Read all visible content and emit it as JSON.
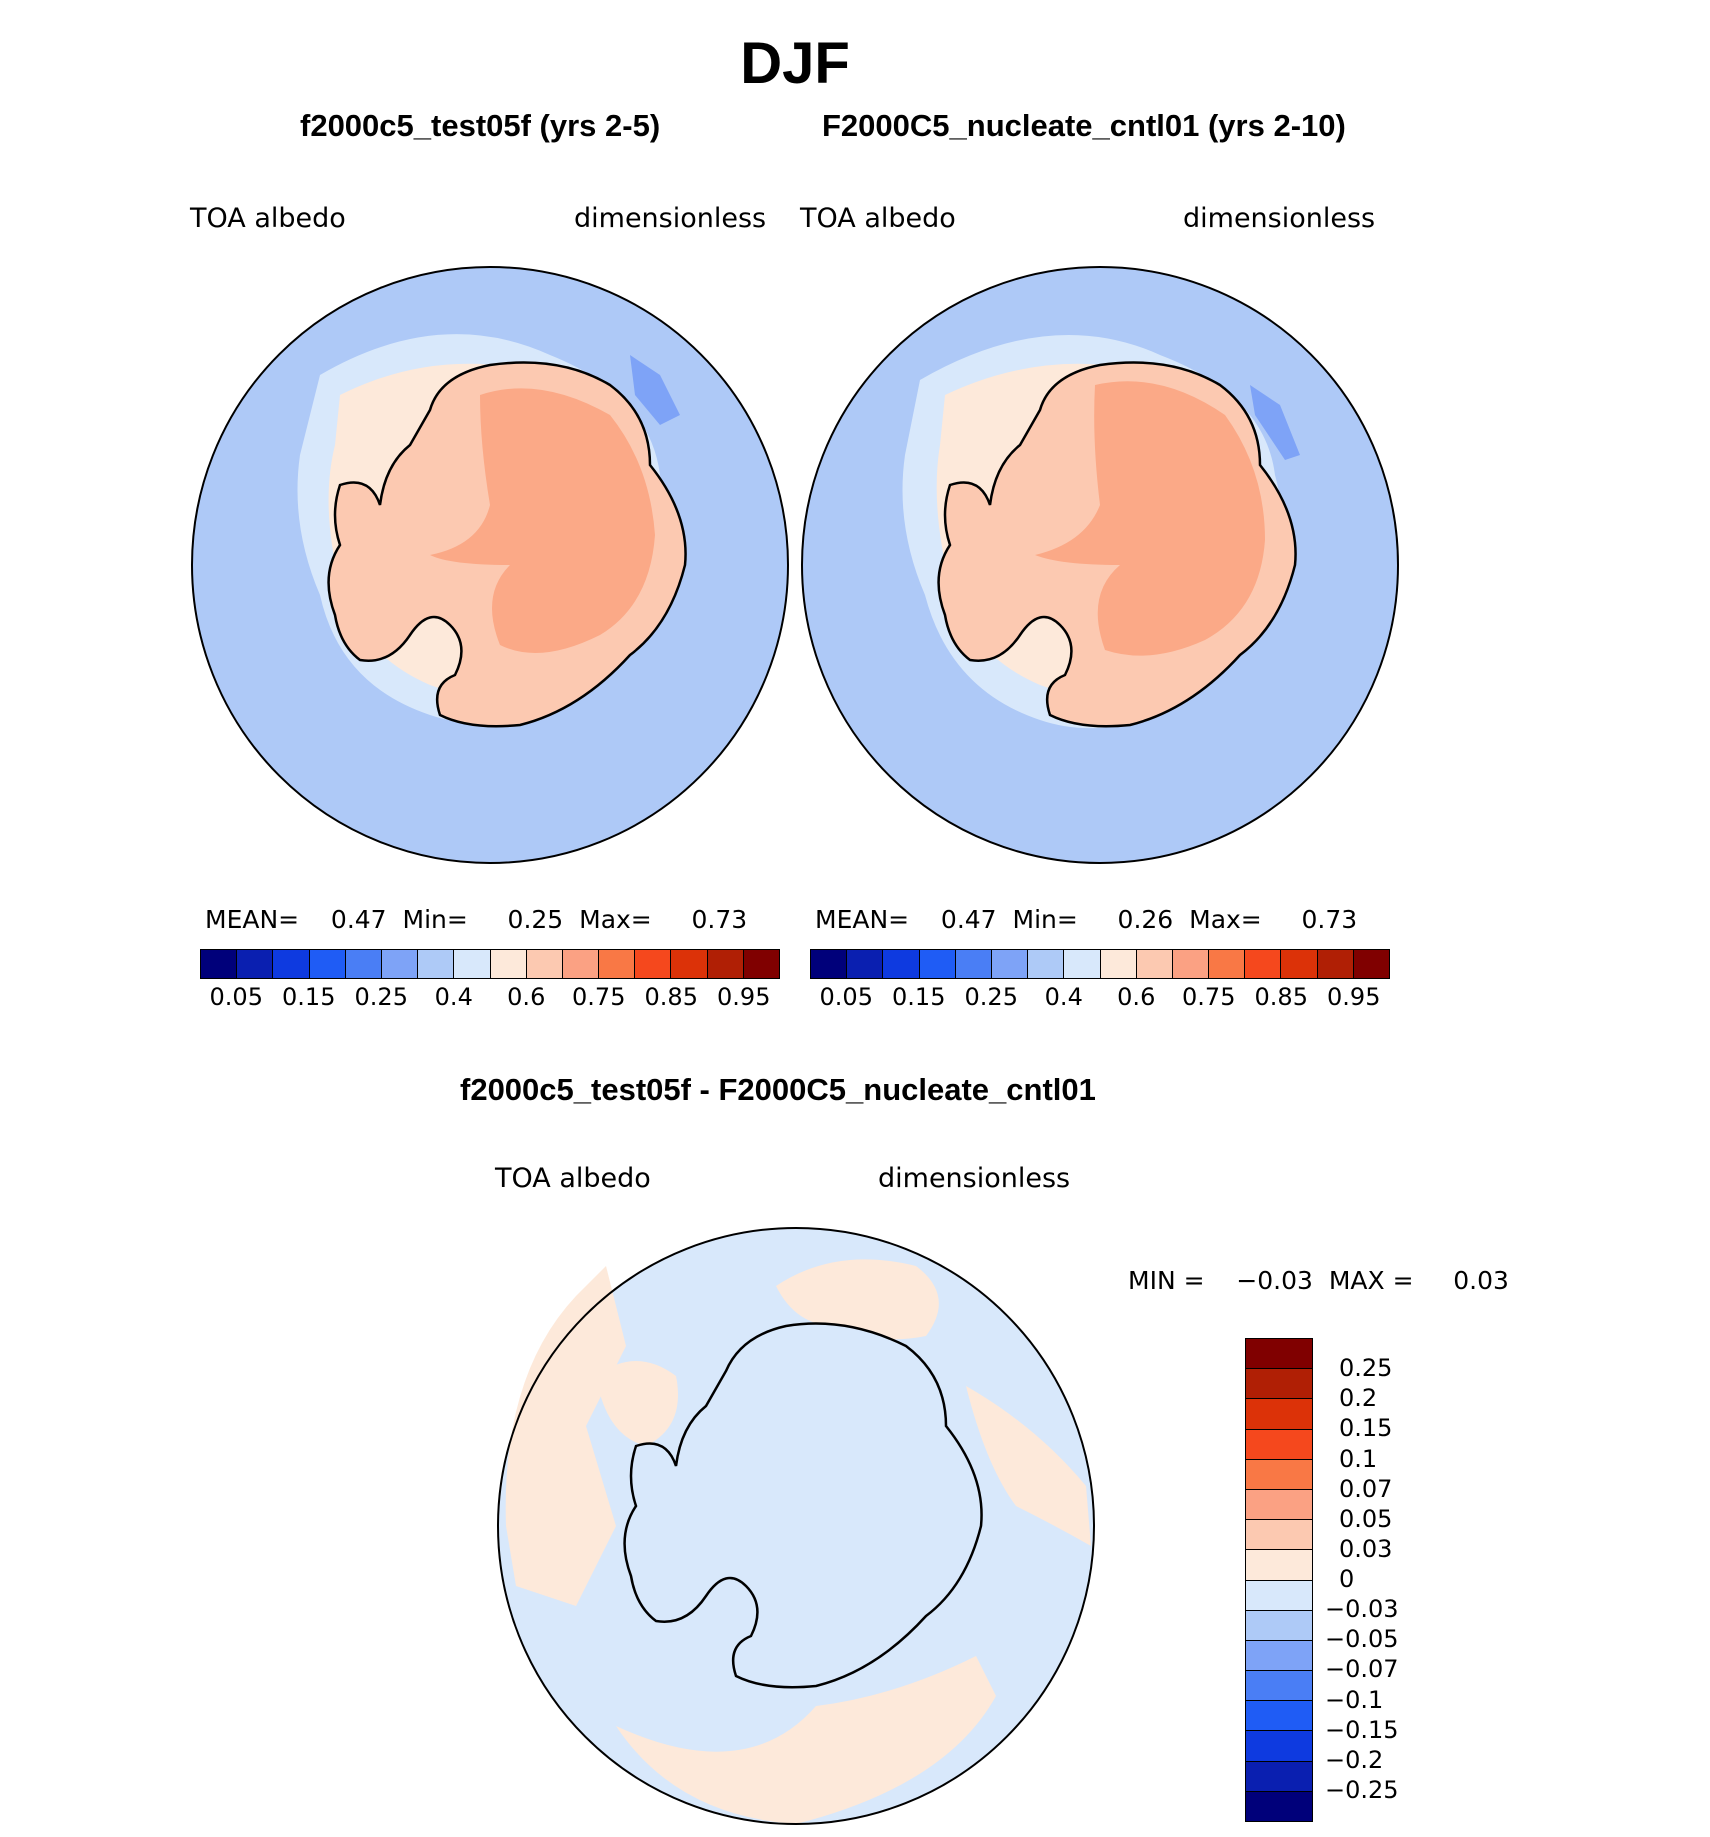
{
  "title": "DJF",
  "panels": [
    {
      "title": "f2000c5_test05f (yrs 2-5)",
      "left_label": "TOA  albedo",
      "right_label": "dimensionless",
      "stats": {
        "mean_label": "MEAN=",
        "mean": "0.47",
        "min_label": "Min=",
        "min": "0.25",
        "max_label": "Max=",
        "max": "0.73"
      }
    },
    {
      "title": "F2000C5_nucleate_cntl01 (yrs 2-10)",
      "left_label": "TOA  albedo",
      "right_label": "dimensionless",
      "stats": {
        "mean_label": "MEAN=",
        "mean": "0.47",
        "min_label": "Min=",
        "min": "0.26",
        "max_label": "Max=",
        "max": "0.73"
      }
    }
  ],
  "colorbar_top": {
    "colors": [
      "#00007a",
      "#0a1fb0",
      "#0e3ae0",
      "#1f5cf5",
      "#4a7ef5",
      "#7ea3f7",
      "#aecaf7",
      "#d8e8fb",
      "#fde9da",
      "#fcc9b1",
      "#fba183",
      "#f97845",
      "#f5481d",
      "#dc3208",
      "#b01f05",
      "#800000"
    ],
    "ticks": [
      "0.05",
      "0.15",
      "0.25",
      "0.4",
      "0.6",
      "0.75",
      "0.85",
      "0.95"
    ]
  },
  "diff": {
    "title": "f2000c5_test05f - F2000C5_nucleate_cntl01",
    "left_label": "TOA  albedo",
    "right_label": "dimensionless",
    "minmax": "MIN =    −0.03  MAX =     0.03"
  },
  "colorbar_diff": {
    "colors": [
      "#800000",
      "#b01f05",
      "#dc3208",
      "#f5481d",
      "#f97845",
      "#fba183",
      "#fcc9b1",
      "#fde9da",
      "#d8e8fb",
      "#aecaf7",
      "#7ea3f7",
      "#4a7ef5",
      "#1f5cf5",
      "#0e3ae0",
      "#0a1fb0",
      "#00007a"
    ],
    "ticks": [
      "0.25",
      "0.2",
      "0.15",
      "0.1",
      "0.07",
      "0.05",
      "0.03",
      "0",
      "−0.03",
      "−0.05",
      "−0.07",
      "−0.1",
      "−0.15",
      "−0.2",
      "−0.25"
    ]
  },
  "map_colors": {
    "ocean": "#aec9f7",
    "ocean_deep": "#7ea3f7",
    "seaice_light": "#d8e8fb",
    "ice_margin": "#fde9da",
    "land": "#fcc9b1",
    "plateau": "#fba987",
    "diff_negative": "#d8e8fb",
    "diff_positive": "#fde9da"
  }
}
